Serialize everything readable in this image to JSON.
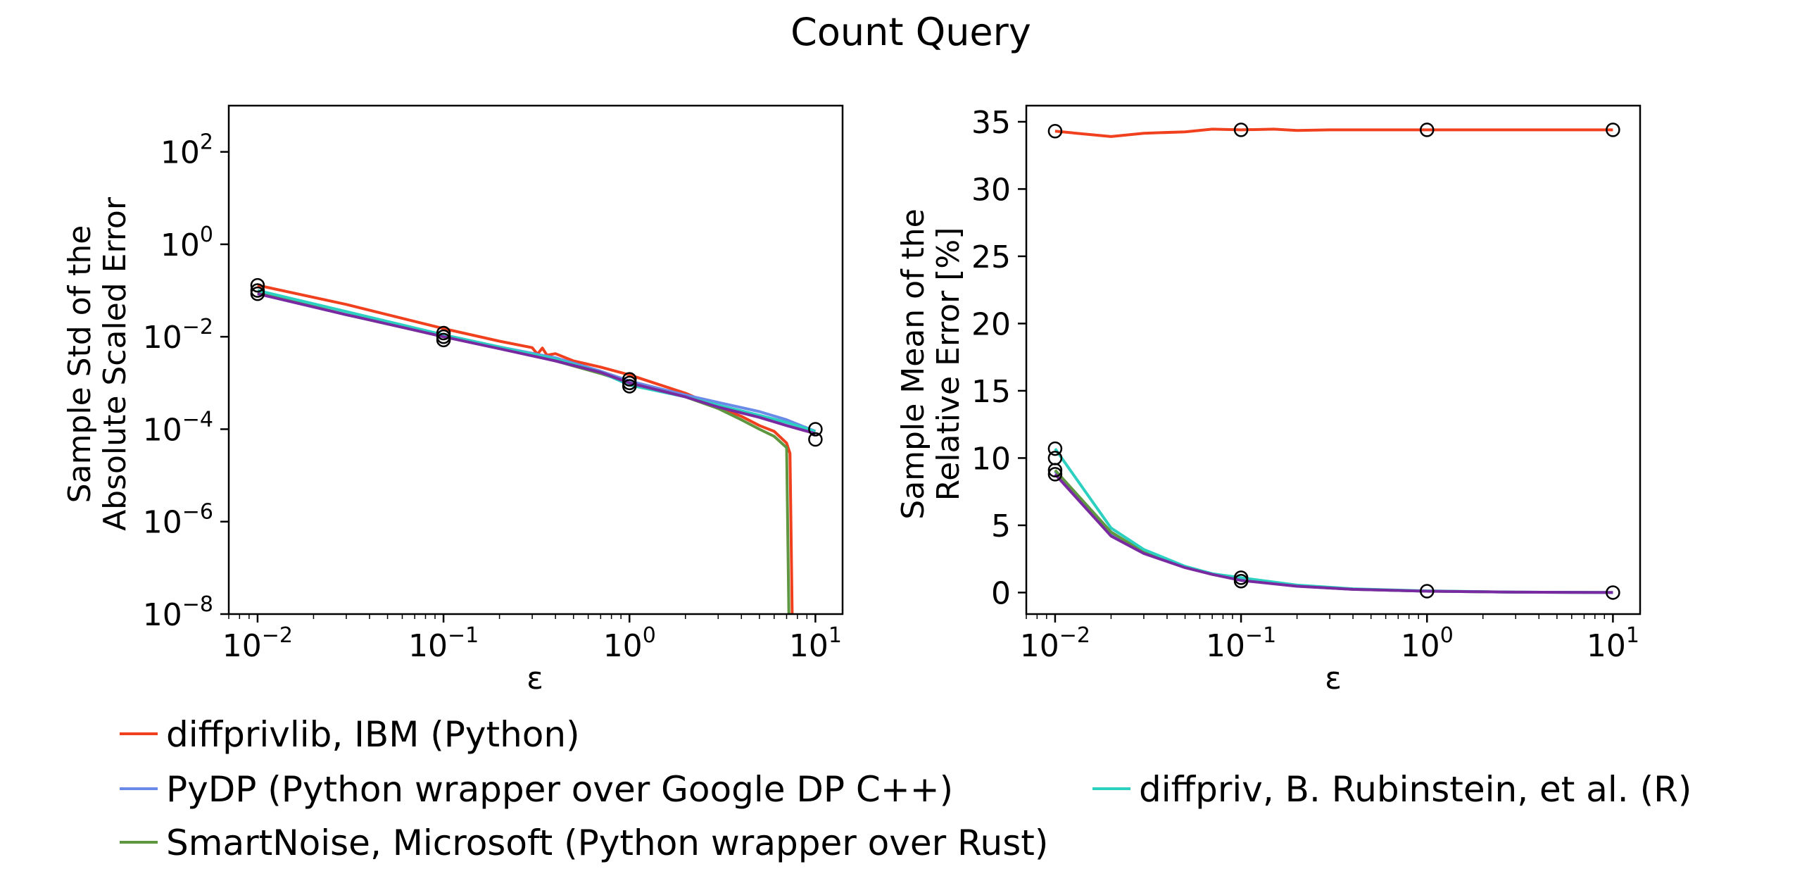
{
  "figure": {
    "title": "Count Query"
  },
  "chart_data": [
    {
      "type": "line",
      "xscale": "log",
      "yscale": "log",
      "xlabel": "ε",
      "ylabel_lines": [
        "Sample Std of the",
        "Absolute Scaled Error"
      ],
      "xlim": [
        0.007,
        14
      ],
      "ylim": [
        1e-08,
        1000
      ],
      "x_ticks": [
        0.01,
        0.1,
        1,
        10
      ],
      "x_tick_exponents": [
        "−2",
        "−1",
        "0",
        "1"
      ],
      "y_ticks": [
        1e-08,
        1e-06,
        0.0001,
        0.01,
        1,
        100
      ],
      "y_tick_exponents": [
        "−8",
        "−6",
        "−4",
        "−2",
        "0",
        "2"
      ],
      "tick_base": "10",
      "markers": [
        {
          "x": 0.01,
          "y": 0.13
        },
        {
          "x": 0.01,
          "y": 0.1
        },
        {
          "x": 0.01,
          "y": 0.085
        },
        {
          "x": 0.1,
          "y": 0.012
        },
        {
          "x": 0.1,
          "y": 0.01
        },
        {
          "x": 0.1,
          "y": 0.0085
        },
        {
          "x": 1,
          "y": 0.0012
        },
        {
          "x": 1,
          "y": 0.001
        },
        {
          "x": 1,
          "y": 0.00085
        },
        {
          "x": 10,
          "y": 0.0001
        },
        {
          "x": 10,
          "y": 6e-05
        }
      ],
      "series": [
        {
          "key": "ibm",
          "x": [
            0.01,
            0.03,
            0.06,
            0.1,
            0.2,
            0.3,
            0.32,
            0.34,
            0.36,
            0.4,
            0.5,
            0.7,
            1,
            2,
            3,
            4,
            5,
            6,
            7,
            7.3,
            7.5
          ],
          "y": [
            0.13,
            0.05,
            0.025,
            0.015,
            0.008,
            0.0058,
            0.0042,
            0.0057,
            0.004,
            0.0043,
            0.003,
            0.0022,
            0.0015,
            0.0006,
            0.0003,
            0.00019,
            0.00012,
            9e-05,
            5e-05,
            3e-05,
            1e-08
          ]
        },
        {
          "key": "pydp",
          "x": [
            0.01,
            0.03,
            0.06,
            0.1,
            0.2,
            0.4,
            0.7,
            1,
            2,
            3,
            5,
            7,
            10
          ],
          "y": [
            0.085,
            0.03,
            0.017,
            0.011,
            0.006,
            0.0035,
            0.0018,
            0.0011,
            0.00055,
            0.00038,
            0.00024,
            0.00016,
            9e-05
          ]
        },
        {
          "key": "smartnoise",
          "x": [
            0.01,
            0.03,
            0.06,
            0.1,
            0.2,
            0.4,
            0.7,
            1,
            2,
            3,
            4,
            5,
            6,
            7,
            7.2
          ],
          "y": [
            0.09,
            0.03,
            0.016,
            0.01,
            0.006,
            0.003,
            0.0016,
            0.001,
            0.0005,
            0.00028,
            0.00016,
            0.0001,
            7e-05,
            4e-05,
            1e-08
          ]
        },
        {
          "key": "diffpriv",
          "x": [
            0.01,
            0.03,
            0.06,
            0.1,
            0.2,
            0.4,
            0.7,
            1,
            2,
            3,
            5,
            7,
            10
          ],
          "y": [
            0.1,
            0.035,
            0.018,
            0.011,
            0.006,
            0.0033,
            0.0017,
            0.0009,
            0.0005,
            0.00033,
            0.0002,
            0.00014,
            9e-05
          ]
        },
        {
          "key": "purple",
          "x": [
            0.01,
            0.03,
            0.06,
            0.1,
            0.2,
            0.4,
            0.7,
            1,
            2,
            3,
            5,
            7,
            10
          ],
          "y": [
            0.085,
            0.03,
            0.016,
            0.01,
            0.0055,
            0.003,
            0.0017,
            0.001,
            0.0005,
            0.0003,
            0.00018,
            0.00012,
            8e-05
          ]
        }
      ]
    },
    {
      "type": "line",
      "xscale": "log",
      "yscale": "linear",
      "xlabel": "ε",
      "ylabel_lines": [
        "Sample Mean of the",
        "Relative Error [%]"
      ],
      "xlim": [
        0.007,
        14
      ],
      "ylim": [
        -1.6,
        36.2
      ],
      "x_ticks": [
        0.01,
        0.1,
        1,
        10
      ],
      "x_tick_exponents": [
        "−2",
        "−1",
        "0",
        "1"
      ],
      "tick_base": "10",
      "y_ticks": [
        0,
        5,
        10,
        15,
        20,
        25,
        30,
        35
      ],
      "y_tick_labels": [
        "0",
        "5",
        "10",
        "15",
        "20",
        "25",
        "30",
        "35"
      ],
      "markers": [
        {
          "x": 0.01,
          "y": 34.3
        },
        {
          "x": 0.1,
          "y": 34.4
        },
        {
          "x": 1,
          "y": 34.4
        },
        {
          "x": 10,
          "y": 34.4
        },
        {
          "x": 0.01,
          "y": 10.7
        },
        {
          "x": 0.01,
          "y": 10.0
        },
        {
          "x": 0.01,
          "y": 9.1
        },
        {
          "x": 0.01,
          "y": 8.8
        },
        {
          "x": 0.1,
          "y": 1.1
        },
        {
          "x": 0.1,
          "y": 0.85
        },
        {
          "x": 1,
          "y": 0.1
        },
        {
          "x": 10,
          "y": 0.0
        }
      ],
      "series": [
        {
          "key": "ibm",
          "x": [
            0.01,
            0.02,
            0.03,
            0.05,
            0.07,
            0.1,
            0.15,
            0.2,
            0.3,
            0.5,
            1,
            2,
            5,
            10
          ],
          "y": [
            34.3,
            33.9,
            34.15,
            34.25,
            34.45,
            34.4,
            34.45,
            34.35,
            34.4,
            34.4,
            34.4,
            34.4,
            34.4,
            34.4
          ]
        },
        {
          "key": "pydp",
          "x": [
            0.01,
            0.02,
            0.03,
            0.05,
            0.07,
            0.1,
            0.2,
            0.4,
            1,
            3,
            10
          ],
          "y": [
            9.0,
            4.4,
            3.0,
            1.9,
            1.4,
            1.0,
            0.5,
            0.25,
            0.1,
            0.03,
            0.0
          ]
        },
        {
          "key": "smartnoise",
          "x": [
            0.01,
            0.02,
            0.03,
            0.05,
            0.07,
            0.1,
            0.2,
            0.4,
            1,
            3,
            10
          ],
          "y": [
            9.1,
            4.5,
            3.0,
            1.9,
            1.35,
            0.95,
            0.48,
            0.24,
            0.1,
            0.03,
            0.0
          ]
        },
        {
          "key": "diffpriv",
          "x": [
            0.01,
            0.02,
            0.03,
            0.05,
            0.07,
            0.1,
            0.2,
            0.4,
            1,
            3,
            10
          ],
          "y": [
            10.7,
            4.8,
            3.2,
            1.95,
            1.4,
            1.1,
            0.55,
            0.28,
            0.12,
            0.03,
            0.0
          ]
        },
        {
          "key": "purple",
          "x": [
            0.01,
            0.02,
            0.03,
            0.05,
            0.07,
            0.1,
            0.2,
            0.4,
            1,
            3,
            10
          ],
          "y": [
            8.8,
            4.2,
            2.9,
            1.85,
            1.35,
            0.9,
            0.47,
            0.24,
            0.1,
            0.03,
            0.0
          ]
        }
      ]
    }
  ],
  "legend": [
    {
      "key": "ibm",
      "label": "diffprivlib, IBM (Python)",
      "color": "#f0401e"
    },
    {
      "key": "pydp",
      "label": "PyDP (Python wrapper over Google DP C++)",
      "color": "#6a8ae8"
    },
    {
      "key": "diffpriv",
      "label": "diffpriv, B. Rubinstein, et al. (R)",
      "color": "#2bd0c0"
    },
    {
      "key": "smartnoise",
      "label": "SmartNoise, Microsoft (Python wrapper over Rust)",
      "color": "#5f9640"
    }
  ],
  "colors": {
    "purple_series": "#7a2aa0",
    "marker_edge": "#000000"
  }
}
